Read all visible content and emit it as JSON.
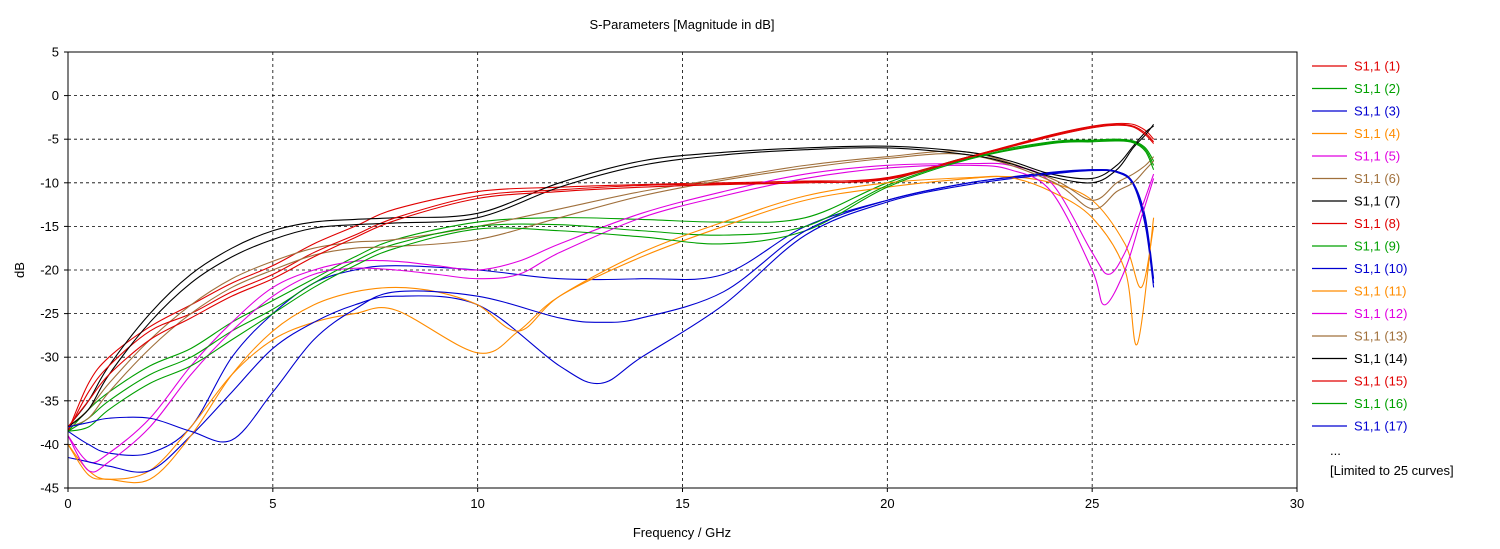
{
  "chart_data": {
    "type": "line",
    "title": "S-Parameters [Magnitude in dB]",
    "xlabel": "Frequency / GHz",
    "ylabel": "dB",
    "xlim": [
      0,
      30
    ],
    "ylim": [
      -45,
      5
    ],
    "xticks": [
      0,
      5,
      10,
      15,
      20,
      25,
      30
    ],
    "yticks": [
      5,
      0,
      -5,
      -10,
      -15,
      -20,
      -25,
      -30,
      -35,
      -40,
      -45
    ],
    "grid": true,
    "legend_position": "right",
    "legend_more": "...",
    "legend_note": "[Limited to 25 curves]",
    "series": [
      {
        "name": "S1,1 (1)",
        "color": "#e00000",
        "x": [
          0,
          0.5,
          1,
          2,
          3,
          4,
          5,
          6,
          7,
          8,
          10,
          12,
          14,
          16,
          18,
          20,
          22,
          24,
          25,
          25.6,
          26,
          26.3,
          26.5
        ],
        "y": [
          -38.5,
          -33,
          -30,
          -26.5,
          -24,
          -21.5,
          -19.5,
          -17,
          -15,
          -13,
          -11,
          -10.5,
          -10.2,
          -10,
          -9.8,
          -9.5,
          -7,
          -4.5,
          -3.5,
          -3.2,
          -3.3,
          -4,
          -5
        ]
      },
      {
        "name": "S1,1 (2)",
        "color": "#00a000",
        "x": [
          0,
          0.5,
          1,
          2,
          3,
          4,
          5,
          6,
          7,
          8,
          10,
          12,
          14,
          16,
          18,
          20,
          22,
          24,
          25,
          25.6,
          26,
          26.3,
          26.5
        ],
        "y": [
          -38.5,
          -36,
          -34,
          -31,
          -29,
          -26,
          -23.5,
          -21,
          -18.5,
          -16.5,
          -14.5,
          -14,
          -14.2,
          -14.5,
          -14,
          -10,
          -7,
          -5.3,
          -5.1,
          -5,
          -5.2,
          -6,
          -7.5
        ]
      },
      {
        "name": "S1,1 (3)",
        "color": "#0000d0",
        "x": [
          0,
          0.5,
          1,
          2,
          3,
          4,
          5,
          6,
          7,
          8,
          10,
          12,
          14,
          16,
          18,
          20,
          22,
          24,
          25,
          25.6,
          26,
          26.3,
          26.5
        ],
        "y": [
          -38.5,
          -40,
          -41,
          -41,
          -38,
          -30,
          -25,
          -21.5,
          -20,
          -19.5,
          -20,
          -21,
          -21,
          -20.5,
          -15,
          -12,
          -10,
          -8.8,
          -8.5,
          -8.7,
          -10,
          -14,
          -21
        ]
      },
      {
        "name": "S1,1 (4)",
        "color": "#ff8c00",
        "x": [
          0,
          0.5,
          1,
          2,
          3,
          4,
          5,
          6,
          7,
          8,
          10,
          11,
          12,
          14,
          16,
          18,
          20,
          22,
          23,
          24,
          25,
          25.8,
          26.2,
          26.5
        ],
        "y": [
          -40,
          -43,
          -44,
          -43,
          -38,
          -32,
          -28,
          -26,
          -25,
          -24.6,
          -29.5,
          -27,
          -23,
          -18.5,
          -15,
          -12,
          -10.5,
          -9.5,
          -9.3,
          -10,
          -12,
          -17,
          -22,
          -15
        ]
      },
      {
        "name": "S1,1 (5)",
        "color": "#e000e0",
        "x": [
          0,
          0.5,
          1,
          2,
          3,
          4,
          5,
          6,
          7,
          8,
          9,
          10,
          11,
          12,
          14,
          16,
          18,
          20,
          22,
          23,
          24,
          25,
          25.4,
          25.8,
          26.2,
          26.5
        ],
        "y": [
          -39,
          -42,
          -41,
          -37,
          -31,
          -26,
          -22,
          -20,
          -19,
          -19,
          -19.5,
          -20,
          -19,
          -17,
          -13.5,
          -11,
          -9,
          -8,
          -7.8,
          -8,
          -10,
          -18,
          -20.5,
          -18,
          -13,
          -9
        ]
      },
      {
        "name": "S1,1 (6)",
        "color": "#a0703c",
        "x": [
          0,
          0.5,
          1,
          2,
          3,
          4,
          5,
          6,
          7,
          8,
          10,
          12,
          14,
          16,
          18,
          20,
          22,
          24,
          25,
          25.6,
          26,
          26.3,
          26.5
        ],
        "y": [
          -38,
          -36,
          -33,
          -28,
          -24,
          -21,
          -19,
          -17.5,
          -16.8,
          -16.5,
          -15,
          -13,
          -11,
          -9.5,
          -8,
          -7,
          -6.5,
          -9.5,
          -12,
          -10,
          -9,
          -8,
          -7
        ]
      },
      {
        "name": "S1,1 (7)",
        "color": "#000000",
        "x": [
          0,
          0.5,
          1,
          2,
          3,
          4,
          5,
          6,
          7,
          8,
          10,
          12,
          14,
          16,
          18,
          20,
          22,
          23,
          24,
          25,
          25.6,
          26,
          26.3,
          26.5
        ],
        "y": [
          -38,
          -35,
          -31,
          -25,
          -20.5,
          -17.5,
          -15.5,
          -14.5,
          -14.2,
          -14,
          -13.5,
          -10,
          -7.5,
          -6.5,
          -6,
          -5.8,
          -6.5,
          -7.5,
          -9,
          -9.5,
          -8,
          -5.8,
          -4.2,
          -3.5
        ]
      },
      {
        "name": "S1,1 (8)",
        "color": "#e00000",
        "x": [
          0,
          0.5,
          1,
          2,
          3,
          4,
          5,
          6,
          7,
          8,
          10,
          12,
          14,
          16,
          18,
          20,
          22,
          24,
          25,
          25.6,
          26,
          26.3,
          26.5
        ],
        "y": [
          -38.5,
          -34,
          -31,
          -27,
          -25,
          -22.5,
          -20.5,
          -18,
          -16,
          -14,
          -11.5,
          -10.8,
          -10.3,
          -10.1,
          -9.9,
          -9.4,
          -7,
          -4.6,
          -3.6,
          -3.3,
          -3.5,
          -4.3,
          -5.3
        ]
      },
      {
        "name": "S1,1 (9)",
        "color": "#00a000",
        "x": [
          0,
          0.5,
          1,
          2,
          3,
          4,
          5,
          6,
          7,
          8,
          10,
          12,
          14,
          16,
          18,
          20,
          22,
          24,
          25,
          25.6,
          26,
          26.3,
          26.5
        ],
        "y": [
          -38.5,
          -37,
          -35,
          -32,
          -30,
          -27,
          -24.5,
          -21.5,
          -19,
          -17,
          -15,
          -14.8,
          -15.5,
          -16,
          -15,
          -10.3,
          -7.2,
          -5.4,
          -5.2,
          -5.1,
          -5.3,
          -6.2,
          -8
        ]
      },
      {
        "name": "S1,1 (10)",
        "color": "#0000d0",
        "x": [
          0,
          0.5,
          1,
          2,
          3,
          4,
          5,
          6,
          7,
          8,
          10,
          12,
          13,
          14,
          16,
          18,
          20,
          22,
          24,
          25,
          25.6,
          26,
          26.3,
          26.5
        ],
        "y": [
          -41.5,
          -42,
          -42.5,
          -43,
          -39,
          -34,
          -29,
          -26,
          -24,
          -23,
          -24,
          -31,
          -33,
          -30,
          -24,
          -16,
          -12.2,
          -10.2,
          -9,
          -8.6,
          -8.8,
          -10.2,
          -15,
          -22
        ]
      },
      {
        "name": "S1,1 (11)",
        "color": "#ff8c00",
        "x": [
          0,
          0.5,
          1,
          2,
          3,
          4,
          5,
          6,
          7,
          8,
          9,
          10,
          11,
          12,
          14,
          16,
          18,
          20,
          22,
          23,
          24,
          25,
          25.8,
          26.1,
          26.5
        ],
        "y": [
          -40,
          -43.5,
          -44,
          -44,
          -39,
          -32,
          -27,
          -24,
          -22.5,
          -22,
          -22.5,
          -24,
          -27,
          -23,
          -18,
          -14.5,
          -11.5,
          -10,
          -9.4,
          -9.4,
          -11,
          -14,
          -20,
          -28.5,
          -14
        ]
      },
      {
        "name": "S1,1 (12)",
        "color": "#e000e0",
        "x": [
          0,
          0.5,
          1,
          2,
          3,
          4,
          5,
          6,
          7,
          8,
          9,
          10,
          11,
          12,
          14,
          16,
          18,
          20,
          22,
          23,
          24,
          25,
          25.3,
          25.8,
          26.2,
          26.5
        ],
        "y": [
          -39,
          -43,
          -42,
          -38,
          -32,
          -27,
          -23,
          -20.5,
          -19.8,
          -20,
          -20.5,
          -21,
          -20.5,
          -18,
          -14,
          -11.5,
          -9.5,
          -8.3,
          -8,
          -8.5,
          -11,
          -20,
          -24,
          -20,
          -14,
          -9.5
        ]
      },
      {
        "name": "S1,1 (13)",
        "color": "#a0703c",
        "x": [
          0,
          0.5,
          1,
          2,
          3,
          4,
          5,
          6,
          7,
          8,
          10,
          12,
          14,
          16,
          18,
          20,
          22,
          24,
          25,
          25.6,
          26,
          26.3,
          26.5
        ],
        "y": [
          -38,
          -37,
          -34,
          -29,
          -25,
          -22,
          -20,
          -18.3,
          -17.5,
          -17.3,
          -16.5,
          -14,
          -11.5,
          -9.7,
          -8.3,
          -7.2,
          -6.8,
          -9.8,
          -13,
          -11,
          -10,
          -8.5,
          -7.5
        ]
      },
      {
        "name": "S1,1 (14)",
        "color": "#000000",
        "x": [
          0,
          0.5,
          1,
          2,
          3,
          4,
          5,
          6,
          7,
          8,
          10,
          12,
          14,
          16,
          18,
          20,
          22,
          23,
          24,
          25,
          25.6,
          26,
          26.3,
          26.5
        ],
        "y": [
          -38,
          -36,
          -32,
          -26,
          -21.5,
          -18.5,
          -16.5,
          -15.2,
          -14.8,
          -14.6,
          -14,
          -10.5,
          -8,
          -6.8,
          -6.2,
          -6,
          -6.8,
          -7.8,
          -9.3,
          -10,
          -8.5,
          -6,
          -4.5,
          -3.3
        ]
      },
      {
        "name": "S1,1 (15)",
        "color": "#e00000",
        "x": [
          0,
          0.5,
          1,
          2,
          3,
          4,
          5,
          6,
          7,
          8,
          10,
          12,
          14,
          16,
          18,
          20,
          22,
          24,
          25,
          25.6,
          26,
          26.3,
          26.5
        ],
        "y": [
          -38,
          -35,
          -32,
          -28,
          -25.5,
          -23,
          -21,
          -18.5,
          -16.3,
          -14.3,
          -11.8,
          -11,
          -10.5,
          -10.2,
          -10,
          -9.6,
          -7.1,
          -4.7,
          -3.7,
          -3.4,
          -3.6,
          -4.5,
          -5.5
        ]
      },
      {
        "name": "S1,1 (16)",
        "color": "#00a000",
        "x": [
          0,
          0.5,
          1,
          2,
          3,
          4,
          5,
          6,
          7,
          8,
          10,
          12,
          14,
          16,
          18,
          20,
          22,
          24,
          25,
          25.6,
          26,
          26.3,
          26.5
        ],
        "y": [
          -38.5,
          -38,
          -36,
          -33,
          -31,
          -28,
          -25,
          -22,
          -19.5,
          -17.5,
          -15.3,
          -15.5,
          -16.2,
          -17,
          -15.5,
          -10.5,
          -7.3,
          -5.5,
          -5.3,
          -5.2,
          -5.4,
          -6.4,
          -8.5
        ]
      },
      {
        "name": "S1,1 (17)",
        "color": "#0000d0",
        "x": [
          0,
          0.5,
          1,
          2,
          3,
          4,
          5,
          6,
          7,
          8,
          10,
          12,
          13,
          14,
          16,
          18,
          20,
          22,
          24,
          25,
          25.6,
          26,
          26.3,
          26.5
        ],
        "y": [
          -38,
          -37.5,
          -37,
          -37,
          -38.5,
          -39.5,
          -34,
          -28,
          -24.5,
          -22.5,
          -23,
          -25.5,
          -26,
          -25.5,
          -22.5,
          -15.5,
          -12,
          -10,
          -8.9,
          -8.5,
          -8.7,
          -10,
          -14.5,
          -21.5
        ]
      }
    ]
  }
}
